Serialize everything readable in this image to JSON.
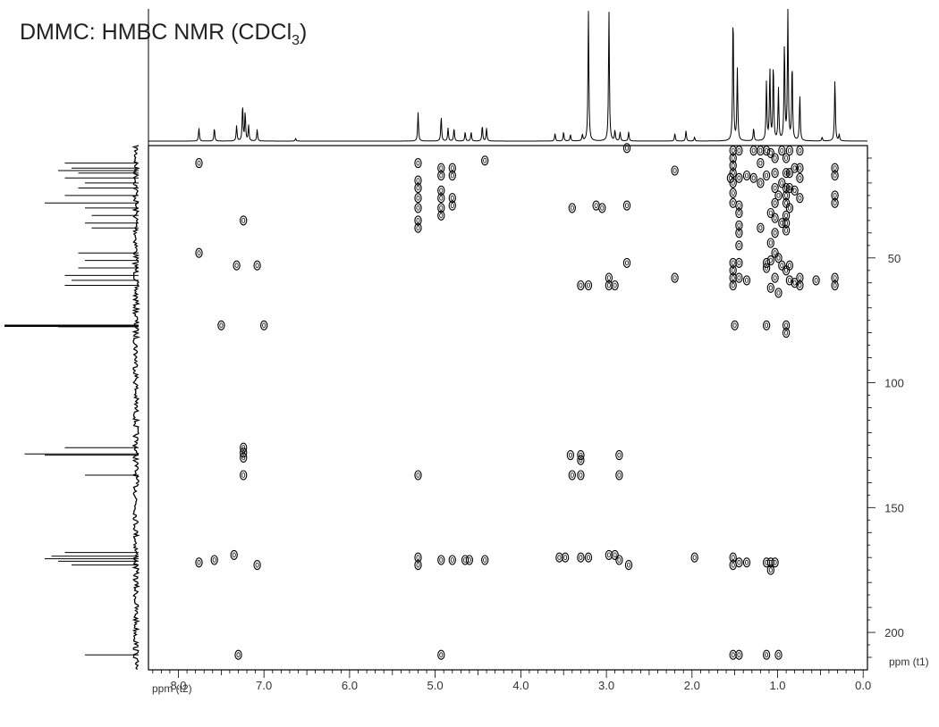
{
  "title": {
    "main": "DMMC: HMBC NMR (CDCl",
    "sub": "3",
    "close": ")"
  },
  "chart_data": {
    "type": "scatter",
    "title": "DMMC: HMBC NMR (CDCl3)",
    "xlabel": "ppm (t2)",
    "ylabel": "ppm (t1)",
    "xlim": [
      8.35,
      -0.05
    ],
    "ylim": [
      5,
      215
    ],
    "x_ticks": [
      "8.0",
      "7.0",
      "6.0",
      "5.0",
      "4.0",
      "3.0",
      "2.0",
      "1.0",
      "0.0"
    ],
    "x_tick_values": [
      8.0,
      7.0,
      6.0,
      5.0,
      4.0,
      3.0,
      2.0,
      1.0,
      0.0
    ],
    "y_ticks": [
      "50",
      "100",
      "150",
      "200"
    ],
    "y_tick_values": [
      50,
      100,
      150,
      200
    ],
    "proton_peaks": [
      {
        "ppm": 7.76,
        "h": 0.1
      },
      {
        "ppm": 7.58,
        "h": 0.1
      },
      {
        "ppm": 7.32,
        "h": 0.12
      },
      {
        "ppm": 7.25,
        "h": 0.28
      },
      {
        "ppm": 7.22,
        "h": 0.22
      },
      {
        "ppm": 7.18,
        "h": 0.12
      },
      {
        "ppm": 7.08,
        "h": 0.09
      },
      {
        "ppm": 6.63,
        "h": 0.02
      },
      {
        "ppm": 5.2,
        "h": 0.22
      },
      {
        "ppm": 4.93,
        "h": 0.19
      },
      {
        "ppm": 4.85,
        "h": 0.1
      },
      {
        "ppm": 4.78,
        "h": 0.1
      },
      {
        "ppm": 4.65,
        "h": 0.07
      },
      {
        "ppm": 4.58,
        "h": 0.07
      },
      {
        "ppm": 4.45,
        "h": 0.12
      },
      {
        "ppm": 4.4,
        "h": 0.1
      },
      {
        "ppm": 3.6,
        "h": 0.06
      },
      {
        "ppm": 3.5,
        "h": 0.07
      },
      {
        "ppm": 3.42,
        "h": 0.05
      },
      {
        "ppm": 3.28,
        "h": 0.05
      },
      {
        "ppm": 3.21,
        "h": 1.0
      },
      {
        "ppm": 2.97,
        "h": 1.0
      },
      {
        "ppm": 2.9,
        "h": 0.08
      },
      {
        "ppm": 2.84,
        "h": 0.07
      },
      {
        "ppm": 2.74,
        "h": 0.07
      },
      {
        "ppm": 2.2,
        "h": 0.06
      },
      {
        "ppm": 2.07,
        "h": 0.08
      },
      {
        "ppm": 1.97,
        "h": 0.03
      },
      {
        "ppm": 1.52,
        "h": 1.0
      },
      {
        "ppm": 1.47,
        "h": 0.55
      },
      {
        "ppm": 1.28,
        "h": 0.1
      },
      {
        "ppm": 1.13,
        "h": 0.45
      },
      {
        "ppm": 1.09,
        "h": 0.55
      },
      {
        "ppm": 1.05,
        "h": 0.6
      },
      {
        "ppm": 0.99,
        "h": 0.4
      },
      {
        "ppm": 0.92,
        "h": 0.75
      },
      {
        "ppm": 0.88,
        "h": 1.0
      },
      {
        "ppm": 0.83,
        "h": 0.6
      },
      {
        "ppm": 0.74,
        "h": 0.35
      },
      {
        "ppm": 0.48,
        "h": 0.03
      },
      {
        "ppm": 0.33,
        "h": 0.48
      },
      {
        "ppm": 0.28,
        "h": 0.05
      }
    ],
    "carbon_peaks": [
      {
        "ppm": 12,
        "h": 0.55
      },
      {
        "ppm": 14,
        "h": 0.5
      },
      {
        "ppm": 15,
        "h": 0.6
      },
      {
        "ppm": 16,
        "h": 0.45
      },
      {
        "ppm": 18,
        "h": 0.55
      },
      {
        "ppm": 20,
        "h": 0.4
      },
      {
        "ppm": 22,
        "h": 0.45
      },
      {
        "ppm": 25,
        "h": 0.55
      },
      {
        "ppm": 28,
        "h": 0.7
      },
      {
        "ppm": 30,
        "h": 0.4
      },
      {
        "ppm": 33,
        "h": 0.35
      },
      {
        "ppm": 36,
        "h": 0.4
      },
      {
        "ppm": 38,
        "h": 0.35
      },
      {
        "ppm": 48,
        "h": 0.45
      },
      {
        "ppm": 51,
        "h": 0.4
      },
      {
        "ppm": 54,
        "h": 0.45
      },
      {
        "ppm": 57,
        "h": 0.55
      },
      {
        "ppm": 59,
        "h": 0.5
      },
      {
        "ppm": 61,
        "h": 0.55
      },
      {
        "ppm": 77.2,
        "h": 1.0
      },
      {
        "ppm": 77.6,
        "h": 0.6
      },
      {
        "ppm": 126,
        "h": 0.55
      },
      {
        "ppm": 128.5,
        "h": 0.85
      },
      {
        "ppm": 129,
        "h": 0.7
      },
      {
        "ppm": 137,
        "h": 0.4
      },
      {
        "ppm": 168,
        "h": 0.55
      },
      {
        "ppm": 169.5,
        "h": 0.65
      },
      {
        "ppm": 170.5,
        "h": 0.7
      },
      {
        "ppm": 171.5,
        "h": 0.6
      },
      {
        "ppm": 173,
        "h": 0.5
      },
      {
        "ppm": 209,
        "h": 0.4
      }
    ],
    "cross_peaks": [
      {
        "x": 7.76,
        "y": 12
      },
      {
        "x": 7.76,
        "y": 48
      },
      {
        "x": 7.76,
        "y": 172
      },
      {
        "x": 7.58,
        "y": 171
      },
      {
        "x": 7.5,
        "y": 77
      },
      {
        "x": 7.35,
        "y": 169
      },
      {
        "x": 7.32,
        "y": 53
      },
      {
        "x": 7.3,
        "y": 209
      },
      {
        "x": 7.24,
        "y": 35
      },
      {
        "x": 7.24,
        "y": 126
      },
      {
        "x": 7.24,
        "y": 128
      },
      {
        "x": 7.24,
        "y": 130
      },
      {
        "x": 7.24,
        "y": 137
      },
      {
        "x": 7.08,
        "y": 53
      },
      {
        "x": 7.08,
        "y": 173
      },
      {
        "x": 7.0,
        "y": 77
      },
      {
        "x": 5.2,
        "y": 12
      },
      {
        "x": 5.2,
        "y": 19
      },
      {
        "x": 5.2,
        "y": 22
      },
      {
        "x": 5.2,
        "y": 26
      },
      {
        "x": 5.2,
        "y": 30
      },
      {
        "x": 5.2,
        "y": 35
      },
      {
        "x": 5.2,
        "y": 38
      },
      {
        "x": 5.2,
        "y": 137
      },
      {
        "x": 5.2,
        "y": 170
      },
      {
        "x": 5.2,
        "y": 173
      },
      {
        "x": 4.93,
        "y": 14
      },
      {
        "x": 4.93,
        "y": 17
      },
      {
        "x": 4.93,
        "y": 23
      },
      {
        "x": 4.93,
        "y": 26
      },
      {
        "x": 4.93,
        "y": 30
      },
      {
        "x": 4.93,
        "y": 33
      },
      {
        "x": 4.93,
        "y": 171
      },
      {
        "x": 4.93,
        "y": 209
      },
      {
        "x": 4.8,
        "y": 14
      },
      {
        "x": 4.8,
        "y": 17
      },
      {
        "x": 4.8,
        "y": 26
      },
      {
        "x": 4.8,
        "y": 29
      },
      {
        "x": 4.8,
        "y": 171
      },
      {
        "x": 4.65,
        "y": 171
      },
      {
        "x": 4.6,
        "y": 171
      },
      {
        "x": 4.42,
        "y": 11
      },
      {
        "x": 4.42,
        "y": 171
      },
      {
        "x": 3.55,
        "y": 170
      },
      {
        "x": 3.48,
        "y": 170
      },
      {
        "x": 3.42,
        "y": 129
      },
      {
        "x": 3.4,
        "y": 137
      },
      {
        "x": 3.4,
        "y": 30
      },
      {
        "x": 3.3,
        "y": 61
      },
      {
        "x": 3.3,
        "y": 129
      },
      {
        "x": 3.3,
        "y": 131
      },
      {
        "x": 3.3,
        "y": 137
      },
      {
        "x": 3.3,
        "y": 170
      },
      {
        "x": 3.21,
        "y": 61
      },
      {
        "x": 3.21,
        "y": 170
      },
      {
        "x": 3.12,
        "y": 29
      },
      {
        "x": 3.05,
        "y": 30
      },
      {
        "x": 2.97,
        "y": 61
      },
      {
        "x": 2.97,
        "y": 58
      },
      {
        "x": 2.97,
        "y": 169
      },
      {
        "x": 2.9,
        "y": 61
      },
      {
        "x": 2.9,
        "y": 169
      },
      {
        "x": 2.85,
        "y": 129
      },
      {
        "x": 2.85,
        "y": 137
      },
      {
        "x": 2.85,
        "y": 171
      },
      {
        "x": 2.76,
        "y": 6
      },
      {
        "x": 2.76,
        "y": 29
      },
      {
        "x": 2.76,
        "y": 52
      },
      {
        "x": 2.74,
        "y": 173
      },
      {
        "x": 2.2,
        "y": 15
      },
      {
        "x": 2.2,
        "y": 58
      },
      {
        "x": 1.97,
        "y": 170
      },
      {
        "x": 1.55,
        "y": 18
      },
      {
        "x": 1.52,
        "y": 7
      },
      {
        "x": 1.52,
        "y": 10
      },
      {
        "x": 1.52,
        "y": 13
      },
      {
        "x": 1.52,
        "y": 16
      },
      {
        "x": 1.52,
        "y": 20
      },
      {
        "x": 1.52,
        "y": 24
      },
      {
        "x": 1.52,
        "y": 28
      },
      {
        "x": 1.52,
        "y": 52
      },
      {
        "x": 1.52,
        "y": 55
      },
      {
        "x": 1.52,
        "y": 58
      },
      {
        "x": 1.52,
        "y": 61
      },
      {
        "x": 1.52,
        "y": 170
      },
      {
        "x": 1.52,
        "y": 173
      },
      {
        "x": 1.52,
        "y": 209
      },
      {
        "x": 1.5,
        "y": 77
      },
      {
        "x": 1.45,
        "y": 7
      },
      {
        "x": 1.45,
        "y": 18
      },
      {
        "x": 1.45,
        "y": 29
      },
      {
        "x": 1.45,
        "y": 32
      },
      {
        "x": 1.45,
        "y": 37
      },
      {
        "x": 1.45,
        "y": 40
      },
      {
        "x": 1.45,
        "y": 45
      },
      {
        "x": 1.45,
        "y": 52
      },
      {
        "x": 1.45,
        "y": 58
      },
      {
        "x": 1.45,
        "y": 172
      },
      {
        "x": 1.45,
        "y": 209
      },
      {
        "x": 1.36,
        "y": 17
      },
      {
        "x": 1.36,
        "y": 59
      },
      {
        "x": 1.36,
        "y": 172
      },
      {
        "x": 1.28,
        "y": 18
      },
      {
        "x": 1.28,
        "y": 7
      },
      {
        "x": 1.2,
        "y": 7
      },
      {
        "x": 1.2,
        "y": 12
      },
      {
        "x": 1.2,
        "y": 20
      },
      {
        "x": 1.2,
        "y": 38
      },
      {
        "x": 1.13,
        "y": 7
      },
      {
        "x": 1.13,
        "y": 17
      },
      {
        "x": 1.13,
        "y": 52
      },
      {
        "x": 1.13,
        "y": 54
      },
      {
        "x": 1.13,
        "y": 77
      },
      {
        "x": 1.13,
        "y": 172
      },
      {
        "x": 1.13,
        "y": 209
      },
      {
        "x": 1.08,
        "y": 8
      },
      {
        "x": 1.08,
        "y": 32
      },
      {
        "x": 1.08,
        "y": 44
      },
      {
        "x": 1.08,
        "y": 51
      },
      {
        "x": 1.08,
        "y": 62
      },
      {
        "x": 1.08,
        "y": 172
      },
      {
        "x": 1.08,
        "y": 175
      },
      {
        "x": 1.03,
        "y": 10
      },
      {
        "x": 1.03,
        "y": 16
      },
      {
        "x": 1.03,
        "y": 22
      },
      {
        "x": 1.03,
        "y": 28
      },
      {
        "x": 1.03,
        "y": 34
      },
      {
        "x": 1.03,
        "y": 40
      },
      {
        "x": 1.03,
        "y": 48
      },
      {
        "x": 1.03,
        "y": 58
      },
      {
        "x": 1.03,
        "y": 172
      },
      {
        "x": 0.99,
        "y": 25
      },
      {
        "x": 0.99,
        "y": 50
      },
      {
        "x": 0.99,
        "y": 64
      },
      {
        "x": 0.99,
        "y": 209
      },
      {
        "x": 0.95,
        "y": 7
      },
      {
        "x": 0.95,
        "y": 20
      },
      {
        "x": 0.95,
        "y": 36
      },
      {
        "x": 0.95,
        "y": 53
      },
      {
        "x": 0.9,
        "y": 10
      },
      {
        "x": 0.9,
        "y": 16
      },
      {
        "x": 0.9,
        "y": 22
      },
      {
        "x": 0.9,
        "y": 25
      },
      {
        "x": 0.9,
        "y": 28
      },
      {
        "x": 0.9,
        "y": 33
      },
      {
        "x": 0.9,
        "y": 36
      },
      {
        "x": 0.9,
        "y": 39
      },
      {
        "x": 0.9,
        "y": 55
      },
      {
        "x": 0.9,
        "y": 77
      },
      {
        "x": 0.9,
        "y": 80
      },
      {
        "x": 0.86,
        "y": 7
      },
      {
        "x": 0.86,
        "y": 16
      },
      {
        "x": 0.86,
        "y": 22
      },
      {
        "x": 0.86,
        "y": 30
      },
      {
        "x": 0.86,
        "y": 53
      },
      {
        "x": 0.86,
        "y": 59
      },
      {
        "x": 0.8,
        "y": 14
      },
      {
        "x": 0.8,
        "y": 23
      },
      {
        "x": 0.8,
        "y": 60
      },
      {
        "x": 0.74,
        "y": 7
      },
      {
        "x": 0.74,
        "y": 14
      },
      {
        "x": 0.74,
        "y": 18
      },
      {
        "x": 0.74,
        "y": 26
      },
      {
        "x": 0.74,
        "y": 58
      },
      {
        "x": 0.74,
        "y": 61
      },
      {
        "x": 0.55,
        "y": 59
      },
      {
        "x": 0.33,
        "y": 14
      },
      {
        "x": 0.33,
        "y": 17
      },
      {
        "x": 0.33,
        "y": 25
      },
      {
        "x": 0.33,
        "y": 28
      },
      {
        "x": 0.33,
        "y": 58
      },
      {
        "x": 0.33,
        "y": 61
      }
    ]
  }
}
